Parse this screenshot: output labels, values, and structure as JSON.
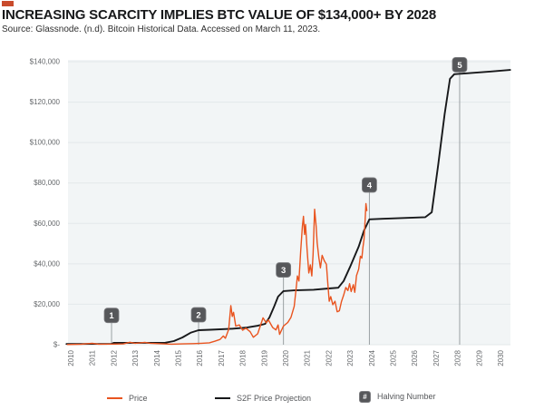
{
  "header": {
    "title": "INCREASING SCARCITY IMPLIES BTC VALUE OF $134,000+ BY 2028",
    "source": "Source: Glassnode. (n.d). Bitcoin Historical Data. Accessed on March 11, 2023.",
    "brand_color": "#c94b2c"
  },
  "legend": {
    "price_label": "Price",
    "s2f_label": "S2F Price Projection",
    "halving_symbol": "#",
    "halving_label": "Halving Number"
  },
  "chart_data": {
    "type": "line",
    "title": "INCREASING SCARCITY IMPLIES BTC VALUE OF $134,000+ BY 2028",
    "xlabel": "",
    "ylabel": "",
    "grid": "horizontal",
    "legend_position": "bottom",
    "x_axis": {
      "ticks": [
        2010,
        2011,
        2012,
        2013,
        2014,
        2015,
        2016,
        2017,
        2018,
        2019,
        2020,
        2021,
        2022,
        2023,
        2024,
        2025,
        2026,
        2027,
        2028,
        2029,
        2030
      ],
      "range_years": [
        2010.3,
        2031.0
      ]
    },
    "y_axis": {
      "tick_values": [
        0,
        20000,
        40000,
        60000,
        80000,
        100000,
        120000,
        140000
      ],
      "tick_labels": [
        "$-",
        "$20,000",
        "$40,000",
        "$60,000",
        "$80,000",
        "$100,000",
        "$120,000",
        "$140,000"
      ],
      "range": [
        0,
        140000
      ]
    },
    "series": [
      {
        "name": "S2F Price Projection",
        "color": "#17181a",
        "width": 1.9,
        "points": [
          [
            2010.3,
            350
          ],
          [
            2012.4,
            400
          ],
          [
            2012.5,
            900
          ],
          [
            2014.9,
            1000
          ],
          [
            2015.3,
            1800
          ],
          [
            2015.7,
            3600
          ],
          [
            2016.1,
            6000
          ],
          [
            2016.45,
            7200
          ],
          [
            2017.0,
            7400
          ],
          [
            2018.0,
            7900
          ],
          [
            2018.7,
            8500
          ],
          [
            2019.2,
            9400
          ],
          [
            2019.55,
            10300
          ],
          [
            2019.75,
            13500
          ],
          [
            2019.95,
            18500
          ],
          [
            2020.15,
            23800
          ],
          [
            2020.4,
            26500
          ],
          [
            2020.9,
            26900
          ],
          [
            2021.8,
            27200
          ],
          [
            2022.5,
            27800
          ],
          [
            2022.95,
            28200
          ],
          [
            2023.2,
            31500
          ],
          [
            2023.5,
            38500
          ],
          [
            2023.9,
            48500
          ],
          [
            2024.15,
            56500
          ],
          [
            2024.4,
            62000
          ],
          [
            2025.0,
            62300
          ],
          [
            2026.0,
            62700
          ],
          [
            2027.0,
            63100
          ],
          [
            2027.3,
            65500
          ],
          [
            2027.6,
            89000
          ],
          [
            2027.9,
            114000
          ],
          [
            2028.15,
            131500
          ],
          [
            2028.35,
            133800
          ],
          [
            2029.0,
            134300
          ],
          [
            2030.0,
            135100
          ],
          [
            2030.95,
            135900
          ]
        ]
      },
      {
        "name": "Price",
        "color": "#e9541f",
        "width": 1.4,
        "points": [
          [
            2010.35,
            100
          ],
          [
            2011.0,
            250
          ],
          [
            2011.5,
            700
          ],
          [
            2011.8,
            250
          ],
          [
            2012.5,
            300
          ],
          [
            2012.95,
            400
          ],
          [
            2013.25,
            1200
          ],
          [
            2013.5,
            700
          ],
          [
            2013.95,
            1150
          ],
          [
            2014.2,
            700
          ],
          [
            2014.7,
            500
          ],
          [
            2015.2,
            270
          ],
          [
            2015.7,
            400
          ],
          [
            2016.2,
            550
          ],
          [
            2016.6,
            700
          ],
          [
            2016.95,
            950
          ],
          [
            2017.2,
            1700
          ],
          [
            2017.45,
            2600
          ],
          [
            2017.6,
            4300
          ],
          [
            2017.7,
            3200
          ],
          [
            2017.85,
            7500
          ],
          [
            2017.95,
            19300
          ],
          [
            2018.02,
            14000
          ],
          [
            2018.08,
            16000
          ],
          [
            2018.18,
            9200
          ],
          [
            2018.35,
            9800
          ],
          [
            2018.5,
            7200
          ],
          [
            2018.65,
            8200
          ],
          [
            2018.85,
            6400
          ],
          [
            2019.0,
            3700
          ],
          [
            2019.2,
            5400
          ],
          [
            2019.45,
            13300
          ],
          [
            2019.6,
            10800
          ],
          [
            2019.7,
            12300
          ],
          [
            2019.9,
            8500
          ],
          [
            2020.05,
            7300
          ],
          [
            2020.15,
            9800
          ],
          [
            2020.22,
            5100
          ],
          [
            2020.4,
            9200
          ],
          [
            2020.6,
            11000
          ],
          [
            2020.75,
            13500
          ],
          [
            2020.9,
            19000
          ],
          [
            2021.0,
            29000
          ],
          [
            2021.05,
            34000
          ],
          [
            2021.12,
            31500
          ],
          [
            2021.2,
            46000
          ],
          [
            2021.28,
            58500
          ],
          [
            2021.33,
            63500
          ],
          [
            2021.38,
            54500
          ],
          [
            2021.43,
            59500
          ],
          [
            2021.5,
            47000
          ],
          [
            2021.58,
            35500
          ],
          [
            2021.65,
            39500
          ],
          [
            2021.72,
            34000
          ],
          [
            2021.78,
            44500
          ],
          [
            2021.85,
            67000
          ],
          [
            2021.92,
            58500
          ],
          [
            2021.97,
            50500
          ],
          [
            2022.05,
            43000
          ],
          [
            2022.12,
            38000
          ],
          [
            2022.2,
            44200
          ],
          [
            2022.3,
            41500
          ],
          [
            2022.4,
            39800
          ],
          [
            2022.47,
            29500
          ],
          [
            2022.53,
            21500
          ],
          [
            2022.6,
            23800
          ],
          [
            2022.7,
            19800
          ],
          [
            2022.8,
            21500
          ],
          [
            2022.9,
            16300
          ],
          [
            2023.0,
            16800
          ],
          [
            2023.1,
            21300
          ],
          [
            2023.2,
            24500
          ],
          [
            2023.3,
            28300
          ],
          [
            2023.4,
            26800
          ],
          [
            2023.48,
            30200
          ],
          [
            2023.55,
            26300
          ],
          [
            2023.65,
            29700
          ],
          [
            2023.72,
            25900
          ],
          [
            2023.8,
            34200
          ],
          [
            2023.9,
            37400
          ],
          [
            2023.98,
            43800
          ],
          [
            2024.05,
            42800
          ],
          [
            2024.1,
            48200
          ],
          [
            2024.15,
            52100
          ],
          [
            2024.2,
            61500
          ],
          [
            2024.24,
            69800
          ],
          [
            2024.28,
            66300
          ]
        ]
      }
    ],
    "halvings": [
      {
        "number": "1",
        "year": 2012.4,
        "badge_value_usd": 14500
      },
      {
        "number": "2",
        "year": 2016.45,
        "badge_value_usd": 14800
      },
      {
        "number": "3",
        "year": 2020.4,
        "badge_value_usd": 37000
      },
      {
        "number": "4",
        "year": 2024.4,
        "badge_value_usd": 79000
      },
      {
        "number": "5",
        "year": 2028.6,
        "badge_value_usd": 138500
      }
    ],
    "colors": {
      "plot_bg": "#f2f5f6",
      "gridline": "#e3e8ea",
      "badge_fill": "#56575a",
      "badge_border": "#7c7d80",
      "badge_line": "#9aa0a3",
      "axis_text": "#66696c"
    }
  }
}
